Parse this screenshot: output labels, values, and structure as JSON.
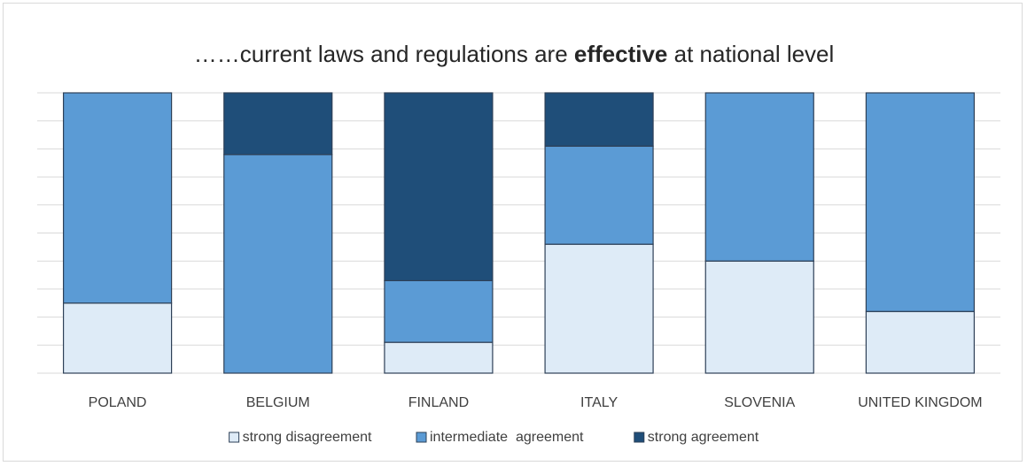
{
  "chart_data": {
    "type": "stacked_bar",
    "title": [
      "……current laws and regulations are ",
      "effective",
      " at national level"
    ],
    "title_bold_part": 1,
    "categories": [
      "POLAND",
      "BELGIUM",
      "FINLAND",
      "ITALY",
      "SLOVENIA",
      "UNITED KINGDOM"
    ],
    "series": [
      {
        "name": "strong disagreement",
        "color": "#deebf7",
        "values": [
          25,
          0,
          11,
          46,
          40,
          22
        ]
      },
      {
        "name": "intermediate  agreement",
        "color": "#5b9bd5",
        "values": [
          75,
          78,
          22,
          35,
          60,
          78
        ]
      },
      {
        "name": "strong agreement",
        "color": "#1f4e79",
        "values": [
          0,
          22,
          67,
          19,
          0,
          0
        ]
      }
    ],
    "ylim": [
      0,
      100
    ],
    "yticks": [
      0,
      10,
      20,
      30,
      40,
      50,
      60,
      70,
      80,
      90,
      100
    ],
    "grid": true,
    "legend": "bottom"
  }
}
